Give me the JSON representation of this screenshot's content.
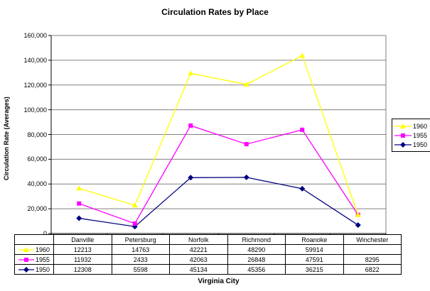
{
  "title": "Circulation Rates by Place",
  "y_axis_title": "Circulation Rate (Averages)",
  "x_axis_title": "Virginia City",
  "chart_data": {
    "type": "line",
    "stacked": true,
    "title": "Circulation Rates by Place",
    "xlabel": "Virginia City",
    "ylabel": "Circulation Rate (Averages)",
    "categories": [
      "Danville",
      "Petersburg",
      "Norfolk",
      "Richmond",
      "Roanoke",
      "Winchester"
    ],
    "series": [
      {
        "name": "1960",
        "color": "#FFFF00",
        "marker": "triangle",
        "values": [
          12213,
          14763,
          42221,
          48290,
          59914,
          null
        ]
      },
      {
        "name": "1955",
        "color": "#FF00FF",
        "marker": "square",
        "values": [
          11932,
          2433,
          42063,
          26848,
          47591,
          8295
        ]
      },
      {
        "name": "1950",
        "color": "#000080",
        "marker": "diamond",
        "values": [
          12308,
          5598,
          45134,
          45356,
          36215,
          6822
        ]
      }
    ],
    "ylim": [
      0,
      160000
    ],
    "y_tick_step": 20000,
    "grid": true,
    "legend_position": "right",
    "data_table_shown": true
  },
  "colors": {
    "gridline": "#808080",
    "axis": "#000000",
    "plot_border": "#808080",
    "background": "#FFFFFF"
  }
}
